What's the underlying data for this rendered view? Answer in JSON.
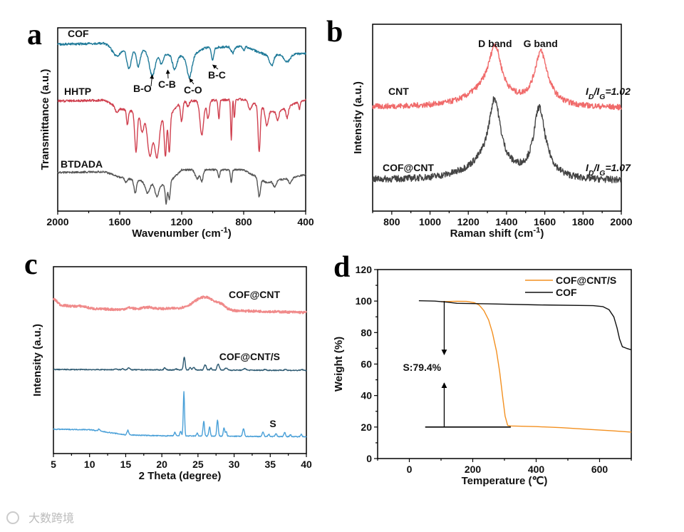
{
  "watermark": "大数跨境",
  "chart_data": [
    {
      "panel": "a",
      "type": "line",
      "xlabel": "Wavenumber (cm^-1)",
      "ylabel": "Transmittance (a.u.)",
      "xlim": [
        2000,
        400
      ],
      "ylim": [
        0,
        10
      ],
      "xticks": [
        2000,
        1600,
        1200,
        800,
        400
      ],
      "xminor": 200,
      "series": [
        {
          "name": "COF",
          "color": "#1f7a99",
          "noise": 0.06,
          "dir": -1,
          "baseline": [
            [
              2000,
              9.1
            ],
            [
              1700,
              9.15
            ],
            [
              1650,
              9.0
            ],
            [
              1150,
              8.4
            ],
            [
              1050,
              8.9
            ],
            [
              800,
              9.0
            ],
            [
              650,
              8.5
            ],
            [
              400,
              8.6
            ]
          ],
          "peaks": [
            [
              1620,
              0.5,
              25
            ],
            [
              1540,
              1.1,
              14
            ],
            [
              1480,
              0.9,
              12
            ],
            [
              1390,
              1.3,
              18
            ],
            [
              1330,
              0.6,
              12
            ],
            [
              1245,
              0.8,
              14
            ],
            [
              1150,
              1.1,
              16
            ],
            [
              1000,
              0.7,
              8
            ],
            [
              870,
              0.35,
              10
            ],
            [
              800,
              0.25,
              6
            ],
            [
              620,
              0.6,
              12
            ],
            [
              520,
              0.4,
              20
            ]
          ]
        },
        {
          "name": "HHTP",
          "color": "#d0404f",
          "noise": 0.06,
          "dir": -1,
          "baseline": [
            [
              2000,
              6.0
            ],
            [
              1700,
              6.05
            ],
            [
              1600,
              5.6
            ],
            [
              1300,
              5.0
            ],
            [
              1200,
              6.0
            ],
            [
              800,
              6.1
            ],
            [
              600,
              5.4
            ],
            [
              400,
              6.1
            ]
          ],
          "peaks": [
            [
              1620,
              0.3,
              10
            ],
            [
              1550,
              0.8,
              6
            ],
            [
              1495,
              2.2,
              8
            ],
            [
              1455,
              1.0,
              10
            ],
            [
              1405,
              2.2,
              16
            ],
            [
              1360,
              2.2,
              14
            ],
            [
              1305,
              2.0,
              7
            ],
            [
              1280,
              2.0,
              6
            ],
            [
              1200,
              1.1,
              7
            ],
            [
              1160,
              0.3,
              8
            ],
            [
              1070,
              1.9,
              12
            ],
            [
              1030,
              1.0,
              8
            ],
            [
              960,
              1.0,
              5
            ],
            [
              880,
              2.2,
              4
            ],
            [
              860,
              1.0,
              4
            ],
            [
              760,
              0.4,
              10
            ],
            [
              700,
              2.5,
              7
            ],
            [
              650,
              0.9,
              10
            ],
            [
              580,
              0.5,
              8
            ],
            [
              520,
              0.6,
              8
            ],
            [
              440,
              0.4,
              5
            ]
          ]
        },
        {
          "name": "BTDADA",
          "color": "#555555",
          "noise": 0.05,
          "dir": -1,
          "baseline": [
            [
              2000,
              2.1
            ],
            [
              1700,
              2.15
            ],
            [
              1600,
              1.85
            ],
            [
              1300,
              1.4
            ],
            [
              1200,
              2.25
            ],
            [
              800,
              2.25
            ],
            [
              650,
              1.55
            ],
            [
              400,
              2.0
            ]
          ],
          "peaks": [
            [
              1560,
              0.2,
              8
            ],
            [
              1500,
              0.7,
              8
            ],
            [
              1420,
              0.6,
              14
            ],
            [
              1360,
              0.7,
              12
            ],
            [
              1300,
              1.0,
              6
            ],
            [
              1280,
              0.9,
              6
            ],
            [
              1100,
              0.5,
              12
            ],
            [
              1070,
              0.6,
              8
            ],
            [
              960,
              0.4,
              6
            ],
            [
              880,
              0.7,
              5
            ],
            [
              700,
              1.0,
              8
            ],
            [
              600,
              0.3,
              10
            ],
            [
              500,
              0.3,
              10
            ]
          ]
        }
      ],
      "annotations": [
        {
          "text": "B-O",
          "x": 1390
        },
        {
          "text": "C-B",
          "x": 1290
        },
        {
          "text": "C-O",
          "x": 1150
        },
        {
          "text": "B-C",
          "x": 1000
        }
      ]
    },
    {
      "panel": "b",
      "type": "line",
      "xlabel": "Raman shift (cm^-1)",
      "ylabel": "Intensity (a.u.)",
      "xlim": [
        700,
        2000
      ],
      "ylim": [
        0,
        10
      ],
      "xticks": [
        800,
        1000,
        1200,
        1400,
        1600,
        1800,
        2000
      ],
      "xminor": 100,
      "series": [
        {
          "name": "CNT",
          "color": "#f06a6a",
          "noise": 0.15,
          "dir": 1,
          "ratio": "I_D/I_G=1.02",
          "baseline": [
            [
              700,
              5.55
            ],
            [
              2000,
              5.5
            ]
          ],
          "peaks": [
            [
              1340,
              2.5,
              38
            ],
            [
              1578,
              2.4,
              38
            ],
            [
              1300,
              0.9,
              120
            ],
            [
              1600,
              0.5,
              60
            ]
          ]
        },
        {
          "name": "COF@CNT",
          "color": "#444444",
          "noise": 0.18,
          "dir": 1,
          "ratio": "I_D/I_G=1.07",
          "baseline": [
            [
              700,
              1.65
            ],
            [
              2000,
              1.6
            ]
          ],
          "peaks": [
            [
              1338,
              3.5,
              36
            ],
            [
              1570,
              3.3,
              34
            ],
            [
              1300,
              0.9,
              130
            ],
            [
              1600,
              0.5,
              60
            ]
          ]
        }
      ],
      "annotations": [
        {
          "text": "D band",
          "x": 1340
        },
        {
          "text": "G band",
          "x": 1578
        }
      ]
    },
    {
      "panel": "c",
      "type": "line",
      "xlabel": "2 Theta (degree)",
      "ylabel": "Intensity (a.u.)",
      "xlim": [
        5,
        40
      ],
      "ylim": [
        0,
        10
      ],
      "xticks": [
        5,
        10,
        15,
        20,
        25,
        30,
        35,
        40
      ],
      "xminor": 2.5,
      "series": [
        {
          "name": "COF@CNT",
          "color": "#f08a8a",
          "noise": 0.06,
          "dir": 1,
          "baseline": [
            [
              5,
              8.3
            ],
            [
              6,
              7.95
            ],
            [
              10,
              7.75
            ],
            [
              15,
              7.7
            ],
            [
              25,
              7.8
            ],
            [
              30,
              7.65
            ],
            [
              40,
              7.55
            ]
          ],
          "peaks": [
            [
              26,
              0.6,
              1.4
            ],
            [
              15.5,
              0.1,
              0.5
            ],
            [
              18,
              0.1,
              0.8
            ],
            [
              28.3,
              0.15,
              0.5
            ],
            [
              9,
              0.08,
              0.8
            ]
          ]
        },
        {
          "name": "COF@CNT/S",
          "color": "#2b5870",
          "noise": 0.025,
          "dir": 1,
          "baseline": [
            [
              5,
              4.5
            ],
            [
              40,
              4.45
            ]
          ],
          "peaks": [
            [
              23.1,
              0.7,
              0.12
            ],
            [
              26.0,
              0.28,
              0.15
            ],
            [
              27.8,
              0.33,
              0.15
            ],
            [
              28.9,
              0.1,
              0.2
            ],
            [
              31.5,
              0.1,
              0.15
            ],
            [
              15.4,
              0.1,
              0.15
            ],
            [
              14.6,
              0.06,
              0.12
            ],
            [
              13.6,
              0.05,
              0.12
            ],
            [
              20.4,
              0.12,
              0.12
            ],
            [
              22.0,
              0.06,
              0.1
            ],
            [
              23.9,
              0.12,
              0.12
            ],
            [
              24.4,
              0.14,
              0.15
            ],
            [
              26.8,
              0.1,
              0.12
            ],
            [
              34.3,
              0.06,
              0.12
            ],
            [
              37.1,
              0.07,
              0.12
            ],
            [
              39.4,
              0.05,
              0.12
            ]
          ]
        },
        {
          "name": "S",
          "color": "#4aa0d8",
          "noise": 0.025,
          "dir": 1,
          "baseline": [
            [
              5,
              1.3
            ],
            [
              10,
              1.28
            ],
            [
              15,
              1.0
            ],
            [
              20,
              0.95
            ],
            [
              40,
              0.9
            ]
          ],
          "peaks": [
            [
              23.05,
              2.35,
              0.09
            ],
            [
              22.6,
              0.25,
              0.1
            ],
            [
              21.8,
              0.2,
              0.1
            ],
            [
              25.8,
              0.8,
              0.1
            ],
            [
              26.6,
              0.5,
              0.1
            ],
            [
              27.7,
              0.85,
              0.1
            ],
            [
              28.6,
              0.45,
              0.1
            ],
            [
              28.9,
              0.25,
              0.1
            ],
            [
              31.3,
              0.4,
              0.12
            ],
            [
              24.9,
              0.15,
              0.1
            ],
            [
              15.3,
              0.25,
              0.12
            ],
            [
              11.3,
              0.1,
              0.12
            ],
            [
              34.0,
              0.22,
              0.12
            ],
            [
              34.8,
              0.12,
              0.1
            ],
            [
              35.8,
              0.15,
              0.12
            ],
            [
              37.0,
              0.22,
              0.12
            ],
            [
              37.8,
              0.1,
              0.1
            ],
            [
              39.3,
              0.15,
              0.1
            ]
          ]
        }
      ]
    },
    {
      "panel": "d",
      "type": "line",
      "xlabel": "Temperature (℃)",
      "ylabel": "Weight (%)",
      "xlim": [
        -100,
        700
      ],
      "ylim": [
        0,
        120
      ],
      "xticks": [
        0,
        200,
        400,
        600
      ],
      "xminor": 100,
      "yticks": [
        0,
        20,
        40,
        60,
        80,
        100,
        120
      ],
      "yminor": 10,
      "legend": "top-right",
      "series": [
        {
          "name": "COF@CNT/S",
          "color": "#f39020",
          "points": [
            [
              100,
              99.6
            ],
            [
              150,
              99.9
            ],
            [
              180,
              99.8
            ],
            [
              205,
              99
            ],
            [
              220,
              97.5
            ],
            [
              235,
              94
            ],
            [
              250,
              88
            ],
            [
              262,
              80
            ],
            [
              275,
              68
            ],
            [
              285,
              55
            ],
            [
              295,
              38
            ],
            [
              302,
              27
            ],
            [
              310,
              21
            ],
            [
              320,
              20.7
            ],
            [
              400,
              20.3
            ],
            [
              480,
              19.6
            ],
            [
              560,
              18.6
            ],
            [
              640,
              17.6
            ],
            [
              700,
              16.8
            ]
          ]
        },
        {
          "name": "COF",
          "color": "#111111",
          "points": [
            [
              30,
              100.2
            ],
            [
              80,
              100
            ],
            [
              120,
              99.3
            ],
            [
              150,
              98.6
            ],
            [
              250,
              98.2
            ],
            [
              400,
              97.6
            ],
            [
              580,
              97.1
            ],
            [
              610,
              96.5
            ],
            [
              630,
              94.5
            ],
            [
              645,
              90
            ],
            [
              655,
              83
            ],
            [
              663,
              76
            ],
            [
              672,
              71
            ],
            [
              685,
              70
            ],
            [
              700,
              69
            ]
          ]
        }
      ],
      "annotation": {
        "text": "S:79.4%",
        "x": 110,
        "top": 100,
        "bottom": 20,
        "value": 79.4
      }
    }
  ]
}
